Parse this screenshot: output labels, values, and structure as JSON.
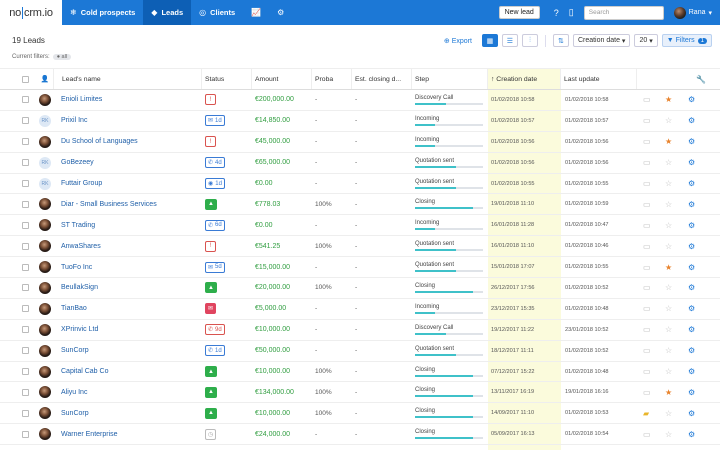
{
  "nav": {
    "logo_left": "no",
    "logo_right": "crm.io",
    "tabs": [
      {
        "label": "Cold prospects",
        "icon": "snowflake-icon",
        "active": false
      },
      {
        "label": "Leads",
        "icon": "diamond-icon",
        "active": true
      },
      {
        "label": "Clients",
        "icon": "handshake-icon",
        "active": false
      }
    ],
    "new_lead": "New lead",
    "search_placeholder": "Search",
    "user_name": "Rana"
  },
  "summary": {
    "lead_count": "19 Leads",
    "current_filters_label": "Current filters:",
    "filter_chip": "all"
  },
  "toolbar": {
    "export": "Export",
    "sort": "Creation date",
    "per_page": "20",
    "filters": "Filters",
    "filters_count": "1"
  },
  "columns": {
    "name": "Lead's name",
    "status": "Status",
    "amount": "Amount",
    "proba": "Proba",
    "closing": "Est. closing d...",
    "step": "Step",
    "created": "Creation date",
    "updated": "Last update"
  },
  "accent": "#1c78d6",
  "rows": [
    {
      "avatar": "photo",
      "name": "Enioli Limites",
      "status": {
        "kind": "red",
        "icon": "!",
        "text": ""
      },
      "amount": "€200,000.00",
      "proba": "-",
      "closing": "-",
      "step": "Discovery Call",
      "step_progress": 0.45,
      "created": "01/02/2018 10:58",
      "updated": "01/02/2018 10:58",
      "folder": false,
      "star": true
    },
    {
      "avatar": "init",
      "name": "Prixil Inc",
      "status": {
        "kind": "blue",
        "icon": "✉",
        "text": "1d"
      },
      "amount": "€14,850.00",
      "proba": "-",
      "closing": "-",
      "step": "Incoming",
      "step_progress": 0.3,
      "created": "01/02/2018 10:57",
      "updated": "01/02/2018 10:57",
      "folder": false,
      "star": false
    },
    {
      "avatar": "photo",
      "name": "Du School of Languages",
      "status": {
        "kind": "red",
        "icon": "!",
        "text": ""
      },
      "amount": "€45,000.00",
      "proba": "-",
      "closing": "-",
      "step": "Incoming",
      "step_progress": 0.3,
      "created": "01/02/2018 10:56",
      "updated": "01/02/2018 10:56",
      "folder": false,
      "star": true
    },
    {
      "avatar": "init",
      "name": "GoBezeey",
      "status": {
        "kind": "blue",
        "icon": "✆",
        "text": "4d"
      },
      "amount": "€65,000.00",
      "proba": "-",
      "closing": "-",
      "step": "Quotation sent",
      "step_progress": 0.6,
      "created": "01/02/2018 10:56",
      "updated": "01/02/2018 10:56",
      "folder": false,
      "star": false
    },
    {
      "avatar": "init",
      "name": "Futtair Group",
      "status": {
        "kind": "blue",
        "icon": "◉",
        "text": "1d"
      },
      "amount": "€0.00",
      "proba": "-",
      "closing": "-",
      "step": "Quotation sent",
      "step_progress": 0.6,
      "created": "01/02/2018 10:55",
      "updated": "01/02/2018 10:55",
      "folder": false,
      "star": false
    },
    {
      "avatar": "photo",
      "name": "Diar - Small Business Services",
      "status": {
        "kind": "green",
        "icon": "▲",
        "text": ""
      },
      "amount": "€778.03",
      "proba": "100%",
      "closing": "-",
      "step": "Closing",
      "step_progress": 0.85,
      "created": "19/01/2018 11:10",
      "updated": "01/02/2018 10:59",
      "folder": false,
      "star": false
    },
    {
      "avatar": "photo",
      "name": "ST Trading",
      "status": {
        "kind": "blue",
        "icon": "✆",
        "text": "6d"
      },
      "amount": "€0.00",
      "proba": "-",
      "closing": "-",
      "step": "Incoming",
      "step_progress": 0.3,
      "created": "16/01/2018 11:28",
      "updated": "01/02/2018 10:47",
      "folder": false,
      "star": false
    },
    {
      "avatar": "photo",
      "name": "AnwaShares",
      "status": {
        "kind": "red",
        "icon": "!",
        "text": ""
      },
      "amount": "€541.25",
      "proba": "100%",
      "closing": "-",
      "step": "Quotation sent",
      "step_progress": 0.6,
      "created": "16/01/2018 11:10",
      "updated": "01/02/2018 10:46",
      "folder": false,
      "star": false
    },
    {
      "avatar": "photo",
      "name": "TuoFo Inc",
      "status": {
        "kind": "blue",
        "icon": "✉",
        "text": "5d"
      },
      "amount": "€15,000.00",
      "proba": "-",
      "closing": "-",
      "step": "Quotation sent",
      "step_progress": 0.6,
      "created": "15/01/2018 17:07",
      "updated": "01/02/2018 10:55",
      "folder": false,
      "star": true
    },
    {
      "avatar": "photo",
      "name": "BeullakSign",
      "status": {
        "kind": "green",
        "icon": "▲",
        "text": ""
      },
      "amount": "€20,000.00",
      "proba": "100%",
      "closing": "-",
      "step": "Closing",
      "step_progress": 0.85,
      "created": "26/12/2017 17:56",
      "updated": "01/02/2018 10:52",
      "folder": false,
      "star": false
    },
    {
      "avatar": "photo",
      "name": "TianBao",
      "status": {
        "kind": "redfill",
        "icon": "✉",
        "text": ""
      },
      "amount": "€5,000.00",
      "proba": "-",
      "closing": "-",
      "step": "Incoming",
      "step_progress": 0.3,
      "created": "23/12/2017 15:35",
      "updated": "01/02/2018 10:48",
      "folder": false,
      "star": false
    },
    {
      "avatar": "photo",
      "name": "XPrinvic Ltd",
      "status": {
        "kind": "red",
        "icon": "✆",
        "text": "9d"
      },
      "amount": "€10,000.00",
      "proba": "-",
      "closing": "-",
      "step": "Discovery Call",
      "step_progress": 0.45,
      "created": "19/12/2017 11:22",
      "updated": "23/01/2018 10:52",
      "folder": false,
      "star": false
    },
    {
      "avatar": "photo",
      "name": "SunCorp",
      "status": {
        "kind": "blue",
        "icon": "✆",
        "text": "1d"
      },
      "amount": "€50,000.00",
      "proba": "-",
      "closing": "-",
      "step": "Quotation sent",
      "step_progress": 0.6,
      "created": "18/12/2017 11:11",
      "updated": "01/02/2018 10:52",
      "folder": false,
      "star": false
    },
    {
      "avatar": "photo",
      "name": "Capital Cab Co",
      "status": {
        "kind": "green",
        "icon": "▲",
        "text": ""
      },
      "amount": "€10,000.00",
      "proba": "100%",
      "closing": "-",
      "step": "Closing",
      "step_progress": 0.85,
      "created": "07/12/2017 15:22",
      "updated": "01/02/2018 10:48",
      "folder": false,
      "star": false
    },
    {
      "avatar": "photo",
      "name": "Aliyu Inc",
      "status": {
        "kind": "green",
        "icon": "▲",
        "text": ""
      },
      "amount": "€134,000.00",
      "proba": "100%",
      "closing": "-",
      "step": "Closing",
      "step_progress": 0.85,
      "created": "13/11/2017 16:19",
      "updated": "19/01/2018 16:16",
      "folder": false,
      "star": true
    },
    {
      "avatar": "photo",
      "name": "SunCorp",
      "status": {
        "kind": "green",
        "icon": "▲",
        "text": ""
      },
      "amount": "€10,000.00",
      "proba": "100%",
      "closing": "-",
      "step": "Closing",
      "step_progress": 0.85,
      "created": "14/09/2017 11:10",
      "updated": "01/02/2018 10:53",
      "folder": true,
      "star": false
    },
    {
      "avatar": "photo",
      "name": "Warner Enterprise",
      "status": {
        "kind": "grey",
        "icon": "◷",
        "text": ""
      },
      "amount": "€24,000.00",
      "proba": "-",
      "closing": "-",
      "step": "Closing",
      "step_progress": 0.85,
      "created": "05/09/2017 16:13",
      "updated": "01/02/2018 10:54",
      "folder": false,
      "star": false
    }
  ]
}
